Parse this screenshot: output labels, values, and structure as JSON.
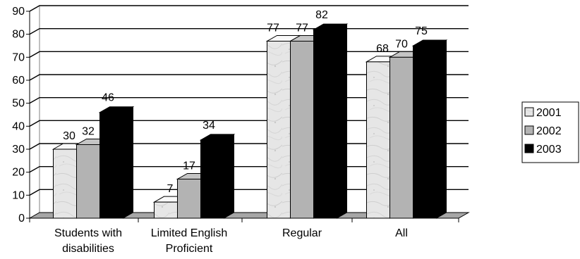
{
  "chart_data": {
    "type": "bar",
    "categories": [
      [
        "Students with",
        "disabilities"
      ],
      [
        "Limited English",
        "Proficient"
      ],
      [
        "Regular"
      ],
      [
        "All"
      ]
    ],
    "series": [
      {
        "name": "2001",
        "values": [
          30,
          7,
          77,
          68
        ],
        "color": "#e2e2e2",
        "pattern": "marble-gray"
      },
      {
        "name": "2002",
        "values": [
          32,
          17,
          77,
          70
        ],
        "color": "#b3b3b3"
      },
      {
        "name": "2003",
        "values": [
          46,
          34,
          82,
          75
        ],
        "color": "#000000"
      }
    ],
    "ylim": [
      0,
      90
    ],
    "yticks": [
      0,
      10,
      20,
      30,
      40,
      50,
      60,
      70,
      80,
      90
    ],
    "grid": true,
    "legend_position": "right",
    "style": "3d-clustered-column"
  }
}
